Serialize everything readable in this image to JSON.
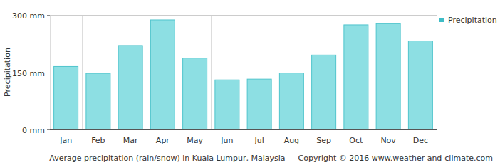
{
  "chart_data": {
    "type": "bar",
    "title": "Average precipitation (rain/snow) in Kuala Lumpur, Malaysia",
    "annotations": [
      "Copyright © 2016 www.weather-and-climate.com"
    ],
    "y_label": "Precipitation",
    "categories": [
      "Jan",
      "Feb",
      "Mar",
      "Apr",
      "May",
      "Jun",
      "Jul",
      "Aug",
      "Sep",
      "Oct",
      "Nov",
      "Dec"
    ],
    "series": [
      {
        "name": "Precipitation",
        "color": "#8ddfe3",
        "values": [
          165,
          147,
          220,
          287,
          187,
          130,
          132,
          148,
          195,
          274,
          277,
          232
        ]
      }
    ],
    "ylim": [
      0,
      300
    ],
    "yticks": [
      {
        "value": 0,
        "label": "0 mm"
      },
      {
        "value": 150,
        "label": "150 mm"
      },
      {
        "value": 300,
        "label": "300 mm"
      }
    ],
    "grid": true,
    "legend": "right"
  }
}
